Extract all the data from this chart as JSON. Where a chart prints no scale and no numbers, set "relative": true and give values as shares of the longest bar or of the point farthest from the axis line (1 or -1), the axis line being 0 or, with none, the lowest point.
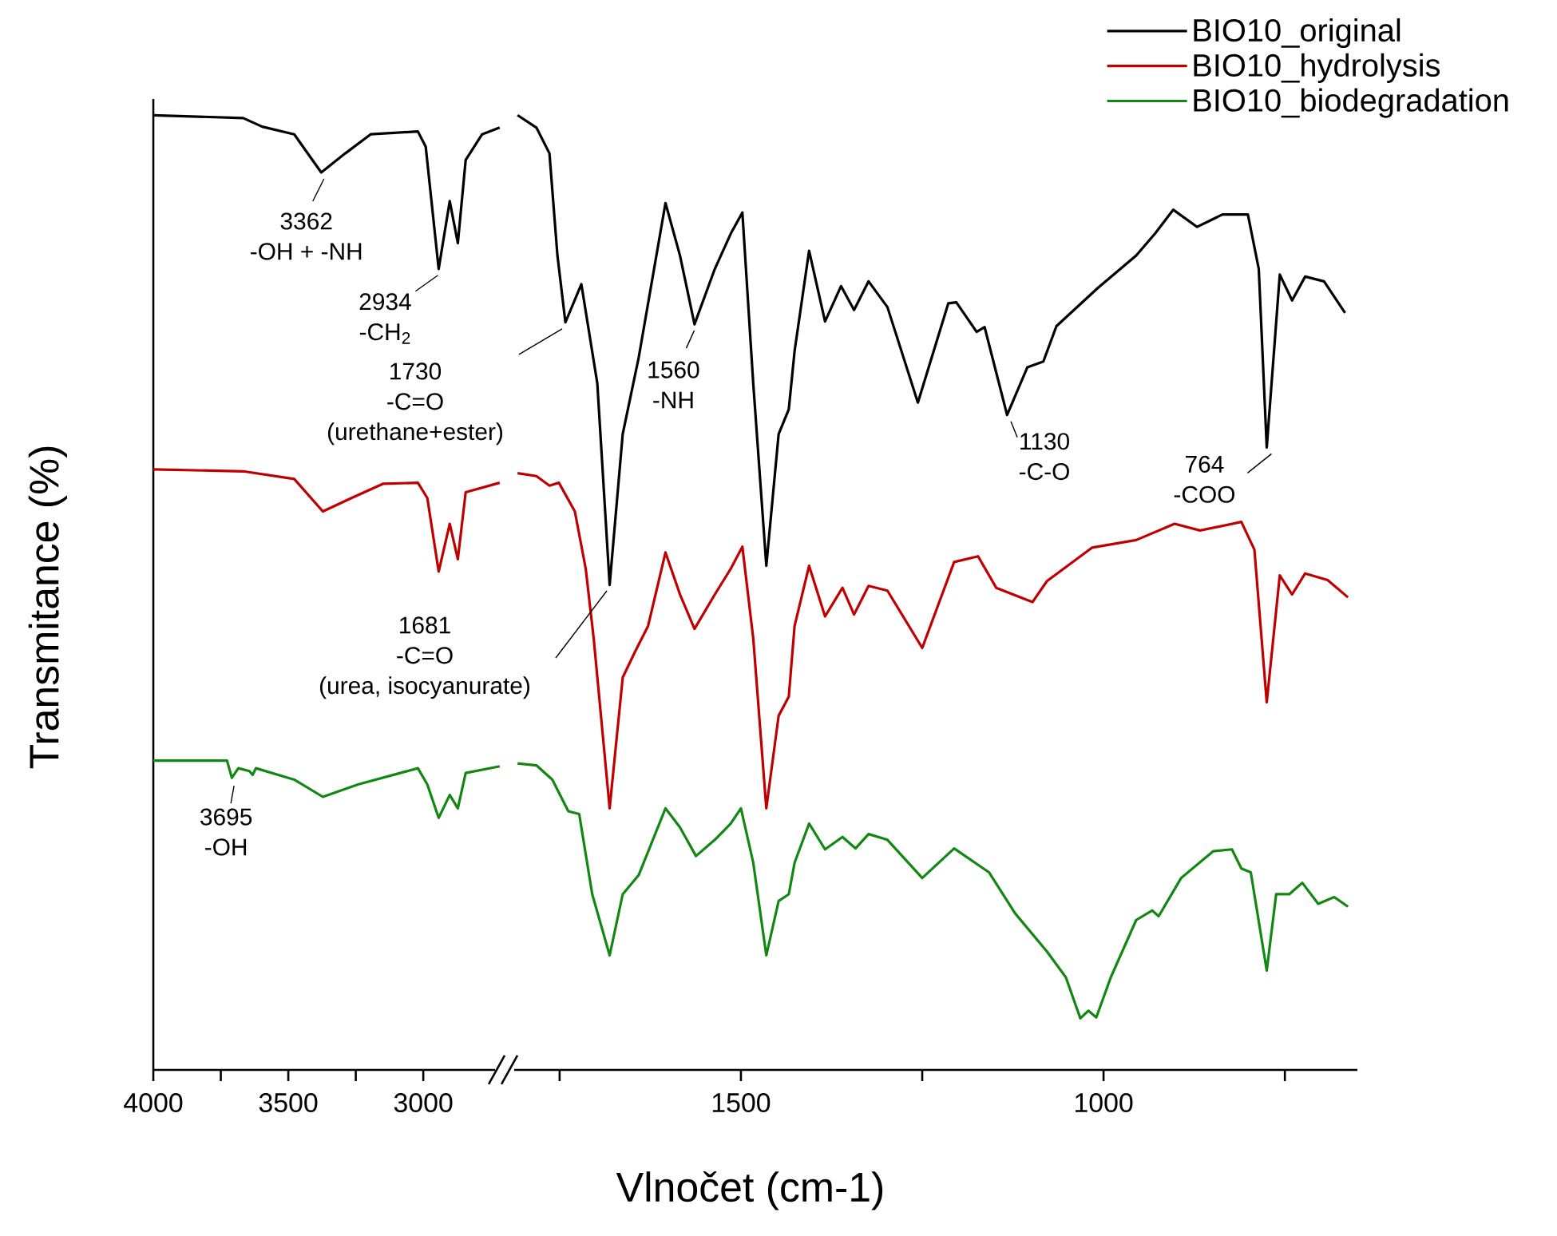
{
  "chart_data": [
    {
      "type": "line",
      "relative": true,
      "ylabel": "Transmitance (%)",
      "xlim": [
        4000,
        2675
      ],
      "xticks": [
        4000,
        {
          "value": 3750,
          "label": null
        },
        3500,
        {
          "value": 3250,
          "label": null
        },
        3000
      ],
      "series": [
        {
          "color": "#000000",
          "x": [
            4000,
            3667,
            3597,
            3478,
            3378,
            3289,
            3195,
            3020,
            2991,
            2943,
            2902,
            2872,
            2843,
            2782,
            2717
          ],
          "values": [
            1.0,
            0.997,
            0.988,
            0.98,
            0.94,
            0.96,
            0.98,
            0.983,
            0.967,
            0.839,
            0.91,
            0.866,
            0.953,
            0.98,
            0.987
          ]
        },
        {
          "color": "#c00000",
          "x": [
            4000,
            3667,
            3478,
            3372,
            3266,
            3148,
            3020,
            2985,
            2943,
            2902,
            2872,
            2843,
            2717
          ],
          "values": [
            0.629,
            0.627,
            0.619,
            0.585,
            0.599,
            0.614,
            0.615,
            0.599,
            0.522,
            0.572,
            0.535,
            0.605,
            0.615
          ]
        },
        {
          "color": "#128712",
          "x": [
            4000,
            3727,
            3709,
            3685,
            3644,
            3632,
            3620,
            3478,
            3372,
            3242,
            3020,
            2985,
            2943,
            2902,
            2872,
            2843,
            2717
          ],
          "values": [
            0.324,
            0.324,
            0.306,
            0.316,
            0.313,
            0.309,
            0.316,
            0.304,
            0.286,
            0.299,
            0.316,
            0.299,
            0.264,
            0.288,
            0.274,
            0.311,
            0.318
          ]
        }
      ],
      "annotations": [
        {
          "text": "3362",
          "x": 3362,
          "y": 0.94
        },
        {
          "text": "-OH + -NH",
          "x": 3362,
          "y": 0.94
        },
        {
          "text": "2934",
          "x": 2934,
          "y": 0.839
        },
        {
          "text": "-CH$_{2}$",
          "x": 2934,
          "y": 0.839
        },
        {
          "text": "3695",
          "x": 3695,
          "y": 0.306
        },
        {
          "text": "-OH",
          "x": 3695,
          "y": 0.306
        }
      ]
    },
    {
      "type": "line",
      "relative": true,
      "xlabel": "Vlnočet (cm-1)",
      "xlim": [
        1817,
        650
      ],
      "legend": "top right",
      "xticks": [
        {
          "value": 1750,
          "label": null
        },
        1500,
        {
          "value": 1250,
          "label": null
        },
        1000,
        {
          "value": 750,
          "label": null
        }
      ],
      "series": [
        {
          "name": "BIO10_original",
          "color": "#000000",
          "x": [
            1808,
            1782,
            1764,
            1753,
            1742,
            1720,
            1698,
            1681,
            1663,
            1641,
            1604,
            1584,
            1564,
            1536,
            1514,
            1498,
            1483,
            1465,
            1448,
            1434,
            1426,
            1406,
            1384,
            1362,
            1344,
            1324,
            1298,
            1256,
            1214,
            1203,
            1175,
            1164,
            1133,
            1105,
            1083,
            1065,
            1008,
            955,
            929,
            904,
            871,
            836,
            801,
            786,
            775,
            757,
            740,
            722,
            696,
            667
          ],
          "values": [
            1.0,
            0.987,
            0.96,
            0.853,
            0.783,
            0.823,
            0.719,
            0.508,
            0.666,
            0.746,
            0.908,
            0.853,
            0.781,
            0.839,
            0.876,
            0.898,
            0.719,
            0.528,
            0.666,
            0.692,
            0.753,
            0.858,
            0.784,
            0.821,
            0.796,
            0.826,
            0.799,
            0.699,
            0.803,
            0.804,
            0.773,
            0.778,
            0.686,
            0.736,
            0.742,
            0.779,
            0.819,
            0.853,
            0.876,
            0.901,
            0.883,
            0.896,
            0.896,
            0.839,
            0.652,
            0.833,
            0.806,
            0.831,
            0.826,
            0.793
          ]
        },
        {
          "name": "BIO10_hydrolysis",
          "color": "#c00000",
          "x": [
            1808,
            1782,
            1764,
            1751,
            1729,
            1714,
            1703,
            1681,
            1663,
            1646,
            1628,
            1604,
            1584,
            1564,
            1536,
            1514,
            1498,
            1483,
            1465,
            1448,
            1434,
            1426,
            1406,
            1384,
            1360,
            1344,
            1324,
            1298,
            1250,
            1206,
            1173,
            1148,
            1098,
            1078,
            1016,
            955,
            902,
            867,
            810,
            792,
            775,
            757,
            740,
            722,
            691,
            663
          ],
          "values": [
            0.625,
            0.622,
            0.612,
            0.615,
            0.585,
            0.525,
            0.452,
            0.274,
            0.411,
            0.438,
            0.465,
            0.542,
            0.498,
            0.462,
            0.498,
            0.525,
            0.548,
            0.452,
            0.274,
            0.371,
            0.391,
            0.465,
            0.528,
            0.475,
            0.505,
            0.477,
            0.507,
            0.502,
            0.442,
            0.532,
            0.538,
            0.505,
            0.49,
            0.512,
            0.547,
            0.555,
            0.572,
            0.565,
            0.574,
            0.545,
            0.385,
            0.518,
            0.498,
            0.52,
            0.513,
            0.495
          ]
        },
        {
          "name": "BIO10_biodegradation",
          "color": "#128712",
          "x": [
            1808,
            1782,
            1760,
            1738,
            1723,
            1705,
            1681,
            1663,
            1641,
            1604,
            1584,
            1562,
            1536,
            1514,
            1500,
            1483,
            1465,
            1448,
            1434,
            1426,
            1406,
            1384,
            1360,
            1342,
            1324,
            1298,
            1250,
            1206,
            1158,
            1122,
            1078,
            1052,
            1032,
            1021,
            1010,
            990,
            955,
            933,
            924,
            893,
            849,
            823,
            810,
            797,
            775,
            762,
            744,
            726,
            704,
            682,
            663
          ],
          "values": [
            0.321,
            0.319,
            0.304,
            0.271,
            0.268,
            0.184,
            0.12,
            0.184,
            0.204,
            0.274,
            0.254,
            0.224,
            0.241,
            0.258,
            0.274,
            0.217,
            0.12,
            0.177,
            0.184,
            0.217,
            0.258,
            0.231,
            0.244,
            0.232,
            0.247,
            0.241,
            0.201,
            0.232,
            0.207,
            0.164,
            0.124,
            0.097,
            0.054,
            0.062,
            0.055,
            0.097,
            0.157,
            0.167,
            0.161,
            0.201,
            0.229,
            0.231,
            0.211,
            0.207,
            0.104,
            0.184,
            0.184,
            0.196,
            0.174,
            0.181,
            0.171
          ]
        }
      ],
      "annotations": [
        "1730",
        "-C=O",
        "(urethane+ester)",
        {
          "text": "1560",
          "x": 1560,
          "y": 0.781
        },
        {
          "text": "-NH",
          "x": 1560,
          "y": 0.781
        },
        "1681",
        "-C=O",
        "(urea, isocyanurate)",
        {
          "text": "1130",
          "x": 1130,
          "y": 0.686
        },
        {
          "text": "-C-O",
          "x": 1130,
          "y": 0.686
        },
        {
          "text": "764",
          "x": 764,
          "y": 0.652
        },
        {
          "text": "-COO",
          "x": 764,
          "y": 0.652
        }
      ]
    }
  ]
}
